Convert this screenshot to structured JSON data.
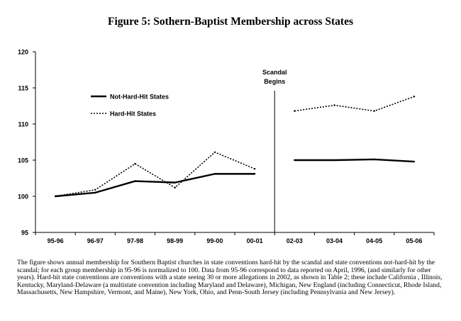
{
  "title": "Figure 5:  Sothern-Baptist Membership across States",
  "caption": "The figure shows annual membership for Southern Baptist churches in state conventions hard-hit by the scandal and state conventions not-hard-hit by the scandal; for each group membership in 95-96 is normalized to 100.  Data from 95-96 correspond to data reported on April, 1996, (and similarly for other years).  Hard-hit state conventions are conventions with a state seeing 30 or more allegations in 2002, as shown in Table 2; these include California , Illinois, Kentucky, Maryland-Delaware (a multistate convention including Maryland and Delaware), Michigan, New England (including Connecticut, Rhode Island, Massachusetts, New Hampshire, Vermont, and Maine), New York, Ohio, and Penn-South Jersey (including Pennsylvania and New Jersey).",
  "chart_data": {
    "type": "line",
    "title": "Figure 5:  Sothern-Baptist Membership across States",
    "xlabel": "",
    "ylabel": "",
    "categories": [
      "95-96",
      "96-97",
      "97-98",
      "98-99",
      "99-00",
      "00-01",
      "02-03",
      "03-04",
      "04-05",
      "05-06"
    ],
    "ylim": [
      95,
      120
    ],
    "yticks": [
      "95",
      "100",
      "105",
      "110",
      "115",
      "120"
    ],
    "series": [
      {
        "name": "Not-Hard-Hit States",
        "style": "solid",
        "color": "#000000",
        "values": [
          100,
          100.5,
          102.1,
          101.9,
          103.1,
          103.1,
          105.0,
          105.0,
          105.1,
          104.8
        ]
      },
      {
        "name": "Hard-Hit States",
        "style": "dotted",
        "color": "#000000",
        "values": [
          100,
          100.9,
          104.5,
          101.2,
          106.1,
          103.8,
          111.8,
          112.6,
          111.8,
          113.8
        ]
      }
    ],
    "break_after_index": 5,
    "event_line": {
      "after_category": "00-01",
      "label_line1": "Scandal",
      "label_line2": "Begins"
    },
    "legend_position": "upper-left"
  }
}
